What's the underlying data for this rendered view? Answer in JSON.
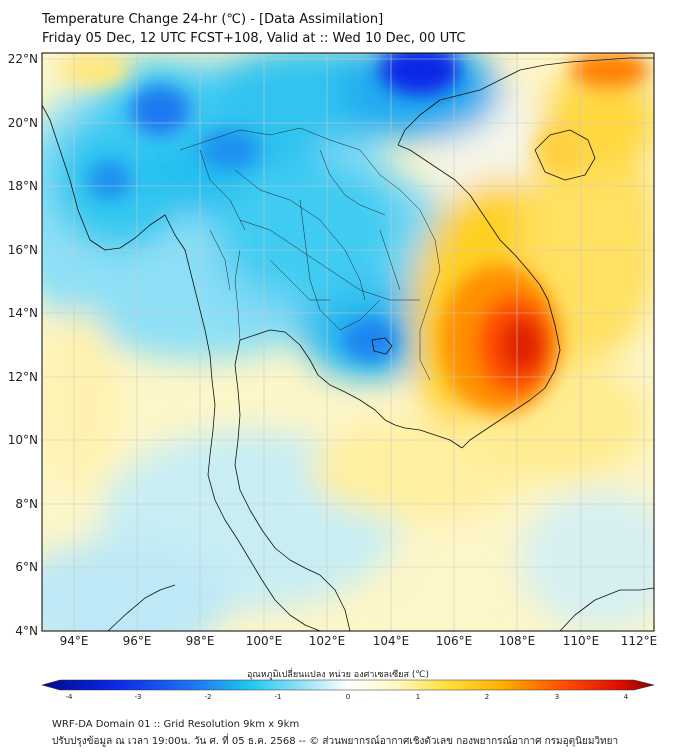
{
  "header": {
    "title": "Temperature Change 24-hr (℃) - [Data Assimilation]",
    "subtitle": "Friday 05 Dec, 12 UTC FCST+108, Valid at :: Wed 10 Dec, 00 UTC"
  },
  "map": {
    "lat_labels": [
      "22°N",
      "20°N",
      "18°N",
      "16°N",
      "14°N",
      "12°N",
      "10°N",
      "8°N",
      "6°N",
      "4°N"
    ],
    "lon_labels": [
      "94°E",
      "96°E",
      "98°E",
      "100°E",
      "102°E",
      "104°E",
      "106°E",
      "108°E",
      "110°E",
      "112°E"
    ],
    "extent": {
      "lon_min": 93,
      "lon_max": 112.3,
      "lat_min": 4,
      "lat_max": 22.2
    },
    "field_colors": {
      "cold_strong": "#0a1ee6",
      "cold": "#1ec8f0",
      "cool": "#a8e6f8",
      "neutral": "#f4f6ee",
      "warm": "#fff2a0",
      "hot": "#ffc000",
      "very_hot": "#ff6000",
      "extreme": "#e02000"
    }
  },
  "colorbar": {
    "label": "อุณหภูมิเปลี่ยนแปลง หน่วย องศาเซลเซียส (℃)",
    "ticks": [
      "-4",
      "-3",
      "-2",
      "-1",
      "0",
      "1",
      "2",
      "3",
      "4"
    ],
    "min": -4,
    "max": 4
  },
  "footer": {
    "line1": "WRF-DA Domain 01 :: Grid Resolution 9km x 9km",
    "line2": "ปรับปรุงข้อมูล ณ เวลา 19:00น. วัน ศ. ที่ 05 ธ.ค. 2568 -- © ส่วนพยากรณ์อากาศเชิงตัวเลข กองพยากรณ์อากาศ กรมอุตุนิยมวิทยา"
  }
}
